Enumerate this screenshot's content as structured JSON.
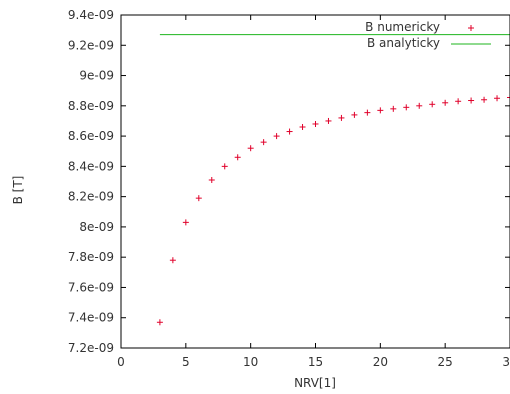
{
  "chart_data": {
    "type": "scatter",
    "xlabel": "NRV[1]",
    "ylabel": "B [T]",
    "xlim": [
      0,
      30
    ],
    "ylim": [
      7.2e-09,
      9.4e-09
    ],
    "x_ticks": [
      0,
      5,
      10,
      15,
      20,
      25,
      30
    ],
    "x_tick_labels": [
      "0",
      "5",
      "10",
      "15",
      "20",
      "25",
      "30"
    ],
    "y_ticks": [
      7.2e-09,
      7.4e-09,
      7.6e-09,
      7.8e-09,
      8e-09,
      8.2e-09,
      8.4e-09,
      8.6e-09,
      8.8e-09,
      9e-09,
      9.2e-09,
      9.4e-09
    ],
    "y_tick_labels": [
      "7.2e-09",
      "7.4e-09",
      "7.6e-09",
      "7.8e-09",
      "8e-09",
      "8.2e-09",
      "8.4e-09",
      "8.6e-09",
      "8.8e-09",
      "9e-09",
      "9.2e-09",
      "9.4e-09"
    ],
    "grid": false,
    "legend_position": "top-right",
    "series": [
      {
        "name": "B numericky",
        "kind": "points",
        "marker": "plus",
        "color": "#e0002a",
        "x": [
          3,
          4,
          5,
          6,
          7,
          8,
          9,
          10,
          11,
          12,
          13,
          14,
          15,
          16,
          17,
          18,
          19,
          20,
          21,
          22,
          23,
          24,
          25,
          26,
          27,
          28,
          29,
          30
        ],
        "y": [
          7.37e-09,
          7.78e-09,
          8.03e-09,
          8.19e-09,
          8.31e-09,
          8.4e-09,
          8.46e-09,
          8.52e-09,
          8.56e-09,
          8.6e-09,
          8.63e-09,
          8.66e-09,
          8.68e-09,
          8.7e-09,
          8.72e-09,
          8.74e-09,
          8.755e-09,
          8.77e-09,
          8.78e-09,
          8.79e-09,
          8.8e-09,
          8.81e-09,
          8.82e-09,
          8.83e-09,
          8.835e-09,
          8.84e-09,
          8.85e-09,
          8.855e-09
        ]
      },
      {
        "name": "B analyticky",
        "kind": "line",
        "color": "#1eb41e",
        "x": [
          3,
          30
        ],
        "y": [
          9.27e-09,
          9.27e-09
        ]
      }
    ]
  }
}
